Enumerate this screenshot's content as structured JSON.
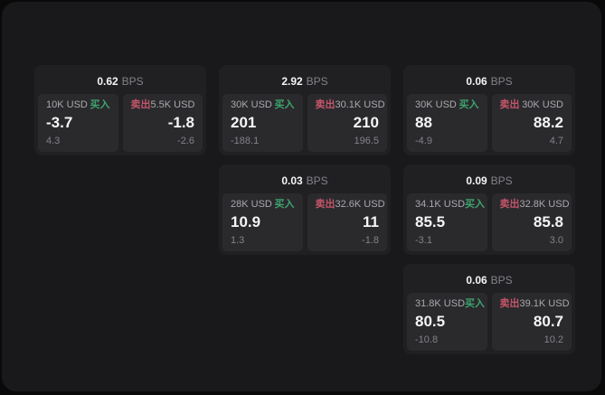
{
  "colors": {
    "outer_bg": "#09090a",
    "window_bg": "#19191b",
    "card_bg": "#202023",
    "panel_bg": "#2a2a2d",
    "text_primary": "#f5f5f6",
    "text_secondary": "#a8a8ae",
    "text_muted": "#828288",
    "buy_green": "#3ea46e",
    "sell_red": "#c4556a"
  },
  "cards": [
    {
      "bps_value": "0.62",
      "bps_unit": "BPS",
      "buy": {
        "amount": "10K USD",
        "side": "买入",
        "price": "-3.7",
        "delta": "4.3"
      },
      "sell": {
        "side": "卖出",
        "amount": "5.5K USD",
        "price": "-1.8",
        "delta": "-2.6"
      }
    },
    {
      "bps_value": "2.92",
      "bps_unit": "BPS",
      "buy": {
        "amount": "30K USD",
        "side": "买入",
        "price": "201",
        "delta": "-188.1"
      },
      "sell": {
        "side": "卖出",
        "amount": "30.1K USD",
        "price": "210",
        "delta": "196.5"
      }
    },
    {
      "bps_value": "0.06",
      "bps_unit": "BPS",
      "buy": {
        "amount": "30K USD",
        "side": "买入",
        "price": "88",
        "delta": "-4.9"
      },
      "sell": {
        "side": "卖出",
        "amount": "30K USD",
        "price": "88.2",
        "delta": "4.7"
      }
    },
    {
      "bps_value": "0.03",
      "bps_unit": "BPS",
      "buy": {
        "amount": "28K USD",
        "side": "买入",
        "price": "10.9",
        "delta": "1.3"
      },
      "sell": {
        "side": "卖出",
        "amount": "32.6K USD",
        "price": "11",
        "delta": "-1.8"
      }
    },
    {
      "bps_value": "0.09",
      "bps_unit": "BPS",
      "buy": {
        "amount": "34.1K USD",
        "side": "买入",
        "price": "85.5",
        "delta": "-3.1"
      },
      "sell": {
        "side": "卖出",
        "amount": "32.8K USD",
        "price": "85.8",
        "delta": "3.0"
      }
    },
    {
      "bps_value": "0.06",
      "bps_unit": "BPS",
      "buy": {
        "amount": "31.8K USD",
        "side": "买入",
        "price": "80.5",
        "delta": "-10.8"
      },
      "sell": {
        "side": "卖出",
        "amount": "39.1K USD",
        "price": "80.7",
        "delta": "10.2"
      }
    }
  ]
}
